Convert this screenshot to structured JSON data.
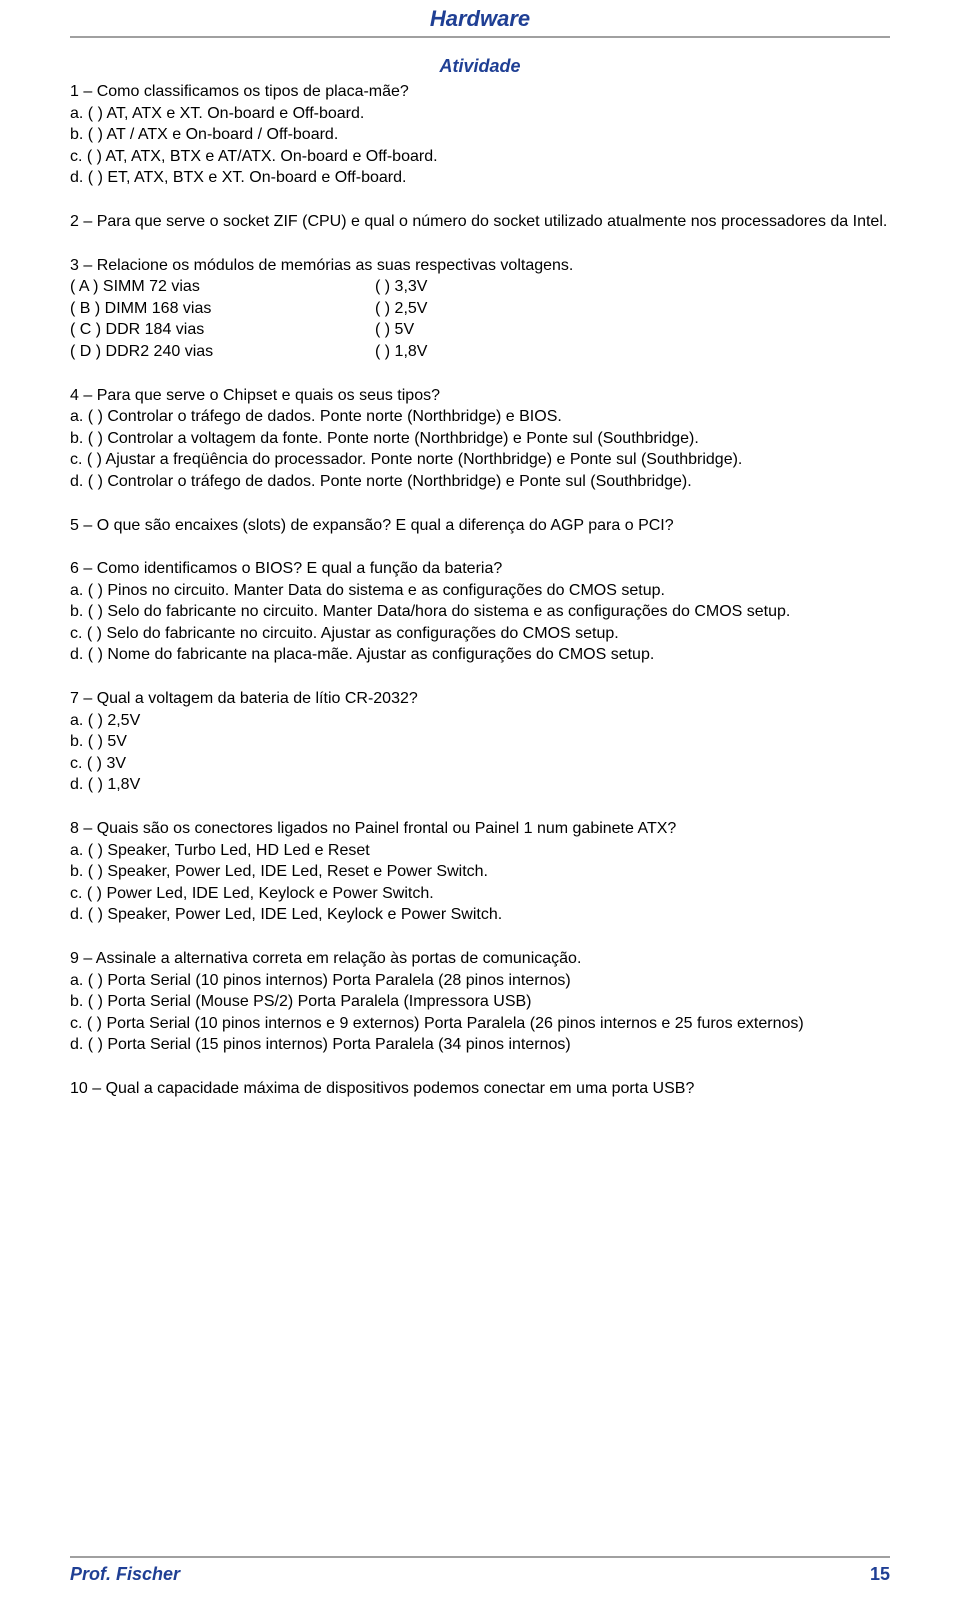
{
  "header": {
    "title": "Hardware"
  },
  "subtitle": "Atividade",
  "colors": {
    "accent": "#1f3f94",
    "rule": "#a0a0a0",
    "text": "#000000",
    "background": "#ffffff"
  },
  "typography": {
    "body_family": "Verdana",
    "body_size_pt": 12,
    "title_size_pt": 16,
    "subtitle_size_pt": 14,
    "header_style": "bold italic"
  },
  "q1": {
    "prompt": "1 – Como classificamos os tipos de placa-mãe?",
    "a": "a. (    ) AT, ATX e XT. On-board e Off-board.",
    "b": "b. (    ) AT / ATX e  On-board / Off-board.",
    "c": "c. (    ) AT, ATX, BTX e AT/ATX. On-board e Off-board.",
    "d": "d. (    ) ET, ATX, BTX e XT. On-board e Off-board."
  },
  "q2": {
    "text": "2 – Para que serve o socket ZIF (CPU) e qual o número do socket utilizado atualmente nos processadores da Intel."
  },
  "q3": {
    "prompt": "3 – Relacione os módulos de memórias as suas respectivas voltagens.",
    "left": {
      "a": "( A ) SIMM 72 vias",
      "b": "( B ) DIMM 168 vias",
      "c": "( C ) DDR 184 vias",
      "d": "( D ) DDR2 240 vias"
    },
    "right": {
      "a": "(   ) 3,3V",
      "b": "(   ) 2,5V",
      "c": "(   ) 5V",
      "d": "(   ) 1,8V"
    }
  },
  "q4": {
    "prompt": "4 – Para que serve o Chipset e quais os seus tipos?",
    "a": "a. (    ) Controlar o tráfego de dados. Ponte norte (Northbridge) e BIOS.",
    "b": "b. (    ) Controlar a voltagem da fonte. Ponte norte (Northbridge) e Ponte sul (Southbridge).",
    "c": "c. (    ) Ajustar a freqüência do processador. Ponte norte (Northbridge) e Ponte sul (Southbridge).",
    "d": "d. (    ) Controlar o tráfego de dados. Ponte norte (Northbridge) e Ponte sul (Southbridge)."
  },
  "q5": {
    "text": "5 – O que são encaixes (slots) de expansão? E qual a diferença do AGP para o PCI?"
  },
  "q6": {
    "prompt": "6 – Como identificamos o BIOS? E qual a função da bateria?",
    "a": "a. (    ) Pinos no circuito. Manter Data do sistema e as configurações do CMOS setup.",
    "b": "b. (    ) Selo do fabricante no circuito. Manter Data/hora do sistema e as configurações do CMOS setup.",
    "c": "c. (    ) Selo do fabricante no circuito. Ajustar as configurações do CMOS setup.",
    "d": "d. (    ) Nome do fabricante na placa-mãe. Ajustar as configurações do CMOS setup."
  },
  "q7": {
    "prompt": "7 – Qual a voltagem da bateria de lítio CR-2032?",
    "a": "a. (    ) 2,5V",
    "b": "b. (    ) 5V",
    "c": "c. (    ) 3V",
    "d": "d. (    ) 1,8V"
  },
  "q8": {
    "prompt": "8 – Quais são os conectores ligados no Painel frontal ou Painel 1 num gabinete ATX?",
    "a": "a. (    ) Speaker, Turbo Led, HD Led e Reset",
    "b": "b. (    ) Speaker, Power Led, IDE Led, Reset e Power Switch.",
    "c": "c. (    ) Power Led, IDE Led, Keylock e Power Switch.",
    "d": "d. (    ) Speaker, Power Led, IDE Led, Keylock e Power Switch."
  },
  "q9": {
    "prompt": "9 – Assinale a alternativa correta em relação às portas de comunicação.",
    "a": "a. (    ) Porta Serial (10 pinos internos) Porta Paralela (28 pinos internos)",
    "b": "b. (    ) Porta Serial (Mouse PS/2) Porta Paralela (Impressora USB)",
    "c": "c. (    ) Porta Serial (10 pinos internos e 9 externos) Porta Paralela (26 pinos internos e 25 furos externos)",
    "d": "d. (    ) Porta Serial (15 pinos internos) Porta Paralela (34 pinos internos)"
  },
  "q10": {
    "text": "10 – Qual a capacidade máxima de dispositivos podemos conectar em uma porta USB?"
  },
  "footer": {
    "left": "Prof. Fischer",
    "page": "15"
  }
}
